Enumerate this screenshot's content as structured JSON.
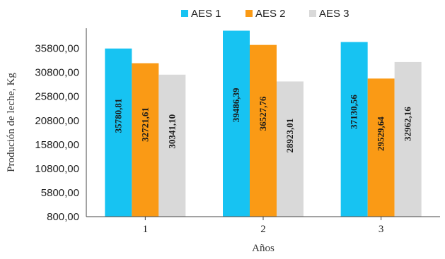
{
  "chart_data": {
    "type": "bar",
    "title": "",
    "xlabel": "Años",
    "ylabel": "Produción de leche, Kg",
    "categories": [
      "1",
      "2",
      "3"
    ],
    "series": [
      {
        "name": "AES 1",
        "color": "#17c3f2",
        "values": [
          35780.81,
          39486.39,
          37130.56
        ],
        "labels": [
          "35780,81",
          "39486,39",
          "37130,56"
        ]
      },
      {
        "name": "AES 2",
        "color": "#fa9a15",
        "values": [
          32721.61,
          36527.76,
          29529.64
        ],
        "labels": [
          "32721,61",
          "36527,76",
          "29529,64"
        ]
      },
      {
        "name": "AES 3",
        "color": "#d9d9d9",
        "values": [
          30341.1,
          28923.01,
          32962.16
        ],
        "labels": [
          "30341,10",
          "28923,01",
          "32962,16"
        ]
      }
    ],
    "yticks": [
      800,
      5800,
      10800,
      15800,
      20800,
      25800,
      30800,
      35800
    ],
    "ytick_labels": [
      "800,00",
      "5800,00",
      "10800,00",
      "15800,00",
      "20800,00",
      "25800,00",
      "30800,00",
      "35800,00"
    ],
    "ylim": [
      800,
      40000
    ],
    "legend_position": "top-center",
    "grid": false
  }
}
